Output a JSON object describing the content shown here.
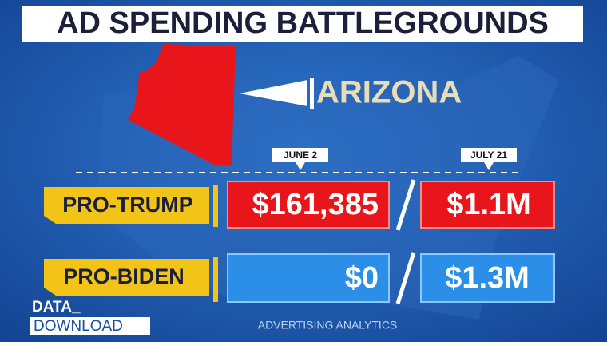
{
  "header": {
    "title": "AD SPENDING BATTLEGROUNDS"
  },
  "state": "ARIZONA",
  "table": {
    "columns": [
      "JUNE 2",
      "JULY 21"
    ],
    "rows": [
      {
        "label": "PRO-TRUMP",
        "cells": [
          "$161,385",
          "$1.1M"
        ]
      },
      {
        "label": "PRO-BIDEN",
        "cells": [
          "$0",
          "$1.3M"
        ]
      }
    ]
  },
  "footer": {
    "logo": [
      "DATA_",
      "DOWNLOAD"
    ],
    "source": "ADVERTISING ANALYTICS"
  }
}
